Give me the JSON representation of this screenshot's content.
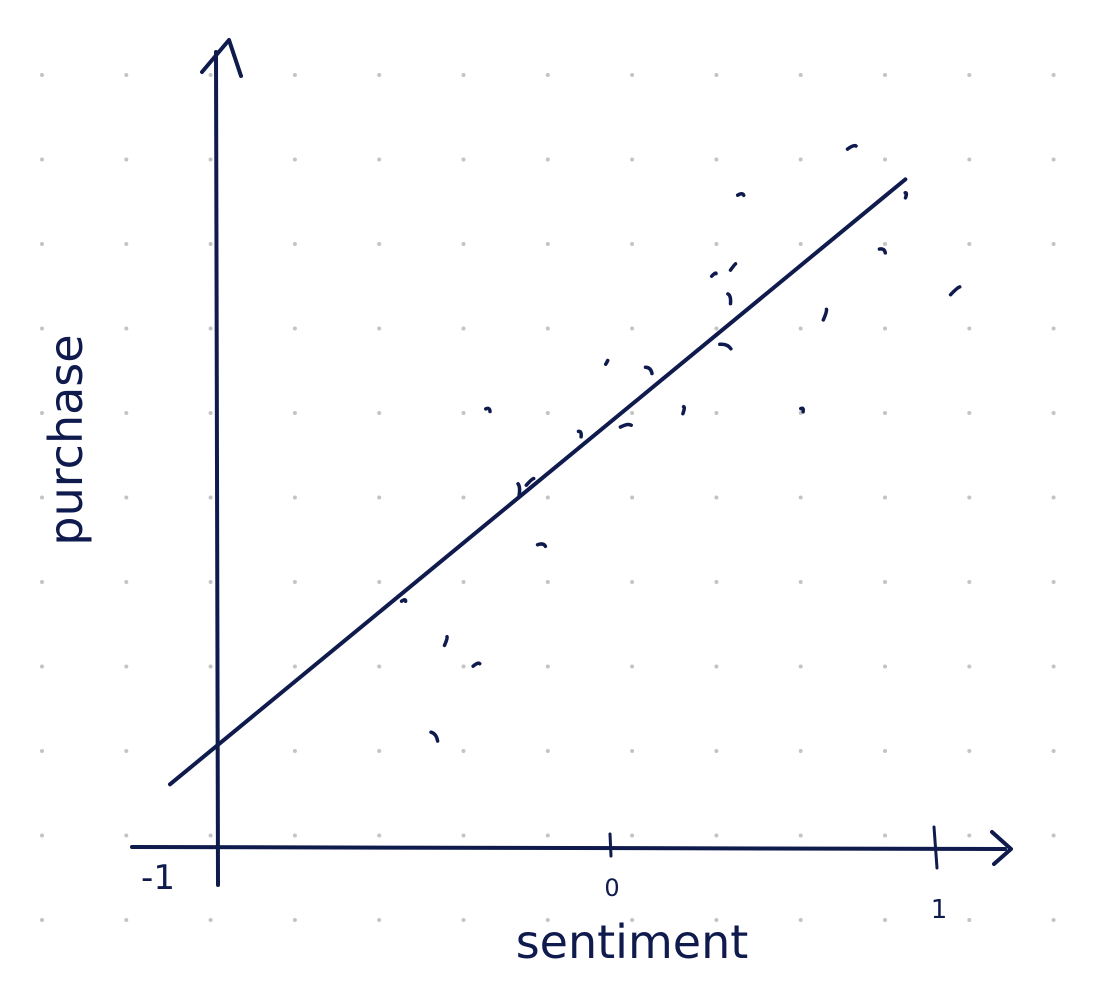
{
  "chart_data": {
    "type": "scatter",
    "title": "",
    "xlabel": "sentiment",
    "ylabel": "purchase",
    "x_ticks": [
      "-1",
      "0",
      "1"
    ],
    "xlim": [
      -1.0,
      1.0
    ],
    "ylim": [
      0.0,
      1.0
    ],
    "grid": "dotted",
    "colors": {
      "ink": "#0f1a4d",
      "grid": "#c4c4c4",
      "background": "#ffffff"
    },
    "points": [
      {
        "x": -0.39,
        "y": 0.31
      },
      {
        "x": -0.31,
        "y": 0.14
      },
      {
        "x": -0.28,
        "y": 0.26
      },
      {
        "x": -0.2,
        "y": 0.23
      },
      {
        "x": -0.17,
        "y": 0.55
      },
      {
        "x": -0.09,
        "y": 0.45
      },
      {
        "x": -0.06,
        "y": 0.46
      },
      {
        "x": -0.03,
        "y": 0.38
      },
      {
        "x": 0.07,
        "y": 0.52
      },
      {
        "x": 0.14,
        "y": 0.61
      },
      {
        "x": 0.19,
        "y": 0.53
      },
      {
        "x": 0.25,
        "y": 0.6
      },
      {
        "x": 0.34,
        "y": 0.55
      },
      {
        "x": 0.42,
        "y": 0.72
      },
      {
        "x": 0.45,
        "y": 0.63
      },
      {
        "x": 0.46,
        "y": 0.69
      },
      {
        "x": 0.47,
        "y": 0.73
      },
      {
        "x": 0.49,
        "y": 0.82
      },
      {
        "x": 0.65,
        "y": 0.55
      },
      {
        "x": 0.71,
        "y": 0.67
      },
      {
        "x": 0.78,
        "y": 0.88
      },
      {
        "x": 0.86,
        "y": 0.75
      },
      {
        "x": 0.92,
        "y": 0.82
      },
      {
        "x": 1.05,
        "y": 0.7
      }
    ],
    "trend_line": {
      "x": [
        -1.0,
        0.92
      ],
      "y": [
        0.08,
        0.84
      ]
    }
  }
}
